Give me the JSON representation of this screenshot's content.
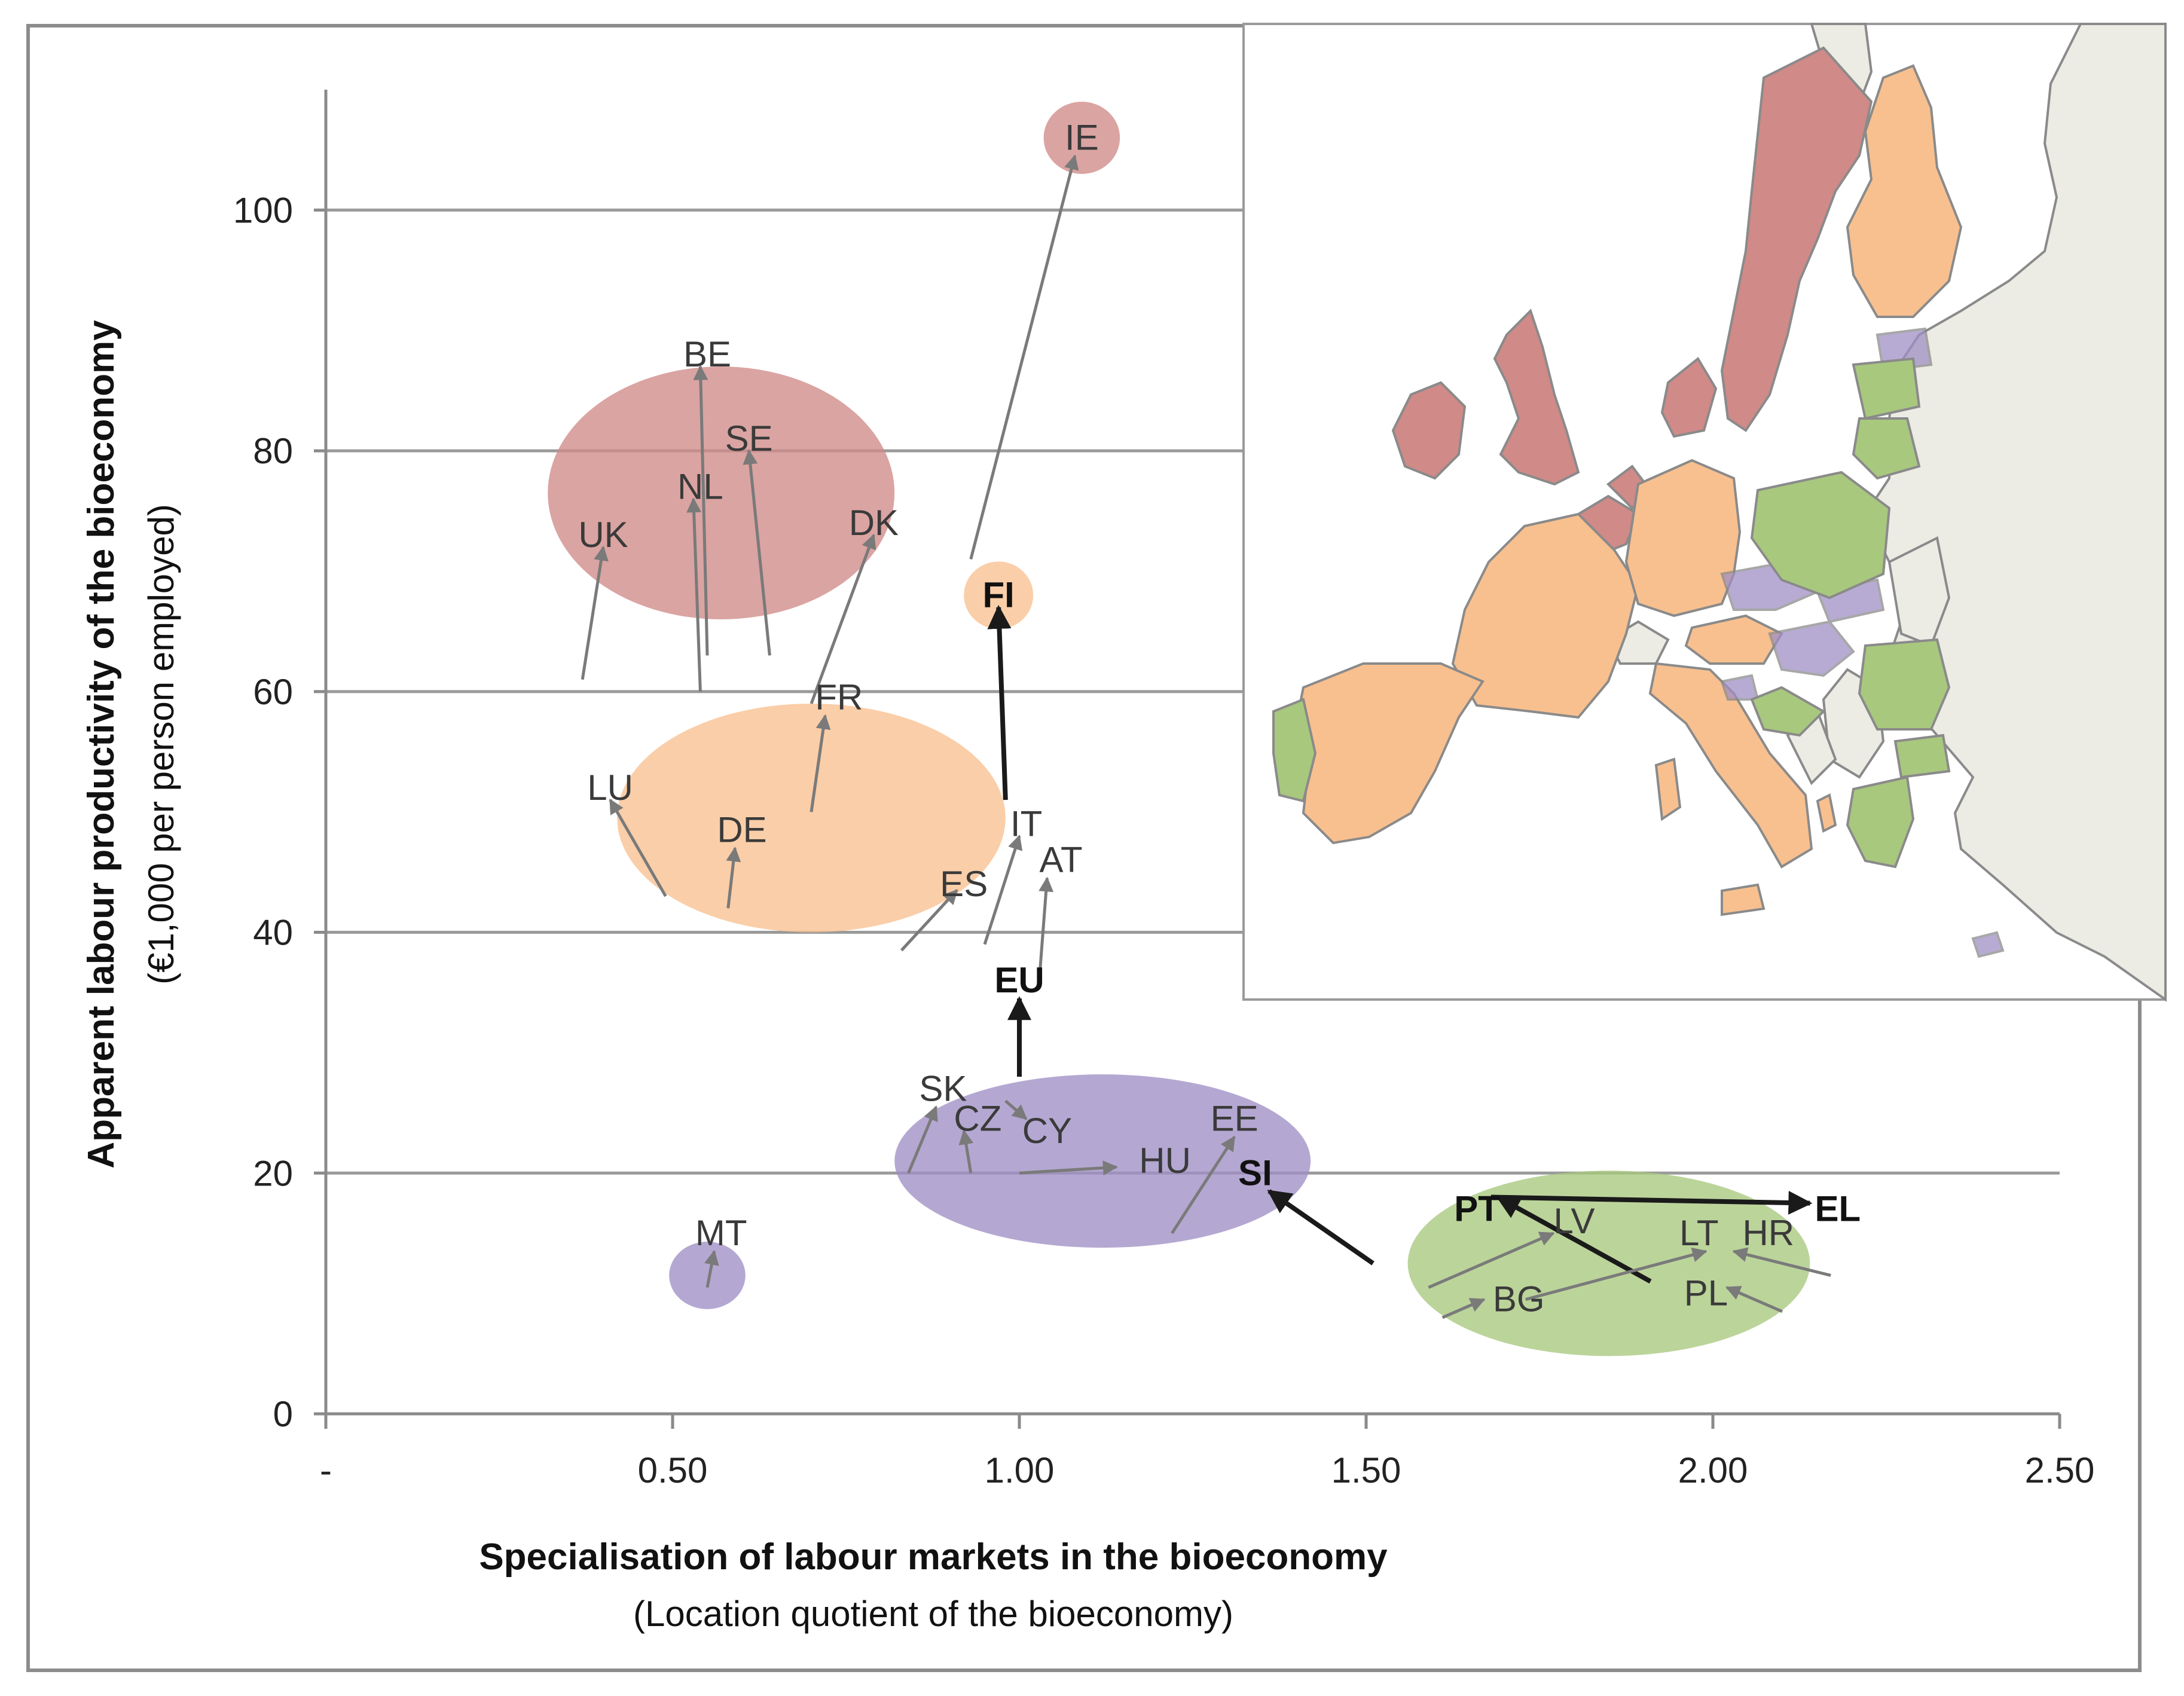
{
  "chart_data": {
    "type": "scatter",
    "xlabel": "Specialisation of labour markets in the bioeconomy",
    "xlabel_sub": "(Location quotient of the bioeconomy)",
    "ylabel": "Apparent labour productivity of the bioeconomy",
    "ylabel_sub": "(€1,000 per person employed)",
    "xlim": [
      0,
      2.5
    ],
    "ylim": [
      0,
      110
    ],
    "x_ticks": [
      {
        "value": 0,
        "label": "-"
      },
      {
        "value": 0.5,
        "label": "0.50"
      },
      {
        "value": 1.0,
        "label": "1.00"
      },
      {
        "value": 1.5,
        "label": "1.50"
      },
      {
        "value": 2.0,
        "label": "2.00"
      },
      {
        "value": 2.5,
        "label": "2.50"
      }
    ],
    "y_ticks": [
      {
        "value": 0,
        "label": "0"
      },
      {
        "value": 20,
        "label": "20"
      },
      {
        "value": 40,
        "label": "40"
      },
      {
        "value": 60,
        "label": "60"
      },
      {
        "value": 80,
        "label": "80"
      },
      {
        "value": 100,
        "label": "100"
      }
    ],
    "grid": "horizontal",
    "group_colors": {
      "red": "#d08a88",
      "orange": "#f8c08f",
      "purple": "#9f8fc5",
      "green": "#a8c87e"
    },
    "groups": [
      {
        "color": "red",
        "center": [
          0.57,
          76.5
        ],
        "radius": [
          0.25,
          10.5
        ]
      },
      {
        "color": "orange",
        "center": [
          0.7,
          49.5
        ],
        "radius": [
          0.28,
          9.5
        ]
      },
      {
        "color": "purple",
        "center": [
          1.12,
          21.0
        ],
        "radius": [
          0.3,
          7.2
        ]
      },
      {
        "color": "green",
        "center": [
          1.85,
          12.5
        ],
        "radius": [
          0.29,
          7.7
        ]
      },
      {
        "color": "red",
        "center": [
          1.09,
          106.0
        ],
        "radius": [
          0.055,
          3.0
        ]
      },
      {
        "color": "orange",
        "center": [
          0.97,
          68.0
        ],
        "radius": [
          0.05,
          2.8
        ]
      },
      {
        "color": "purple",
        "center": [
          0.55,
          11.5
        ],
        "radius": [
          0.055,
          2.8
        ]
      }
    ],
    "points": [
      {
        "label": "IE",
        "from": [
          0.93,
          71
        ],
        "to": [
          1.08,
          104.5
        ],
        "label_at": [
          1.09,
          106
        ],
        "bold": false
      },
      {
        "label": "BE",
        "from": [
          0.55,
          63
        ],
        "to": [
          0.54,
          87
        ],
        "label_at": [
          0.55,
          88
        ],
        "bold": false
      },
      {
        "label": "SE",
        "from": [
          0.64,
          63
        ],
        "to": [
          0.61,
          80
        ],
        "label_at": [
          0.61,
          81
        ],
        "bold": false
      },
      {
        "label": "NL",
        "from": [
          0.54,
          60
        ],
        "to": [
          0.53,
          76
        ],
        "label_at": [
          0.54,
          77
        ],
        "bold": false
      },
      {
        "label": "UK",
        "from": [
          0.37,
          61
        ],
        "to": [
          0.4,
          72
        ],
        "label_at": [
          0.4,
          73
        ],
        "bold": false
      },
      {
        "label": "DK",
        "from": [
          0.7,
          59
        ],
        "to": [
          0.79,
          73
        ],
        "label_at": [
          0.79,
          74
        ],
        "bold": false
      },
      {
        "label": "FI",
        "from": [
          0.98,
          51
        ],
        "to": [
          0.97,
          67
        ],
        "label_at": [
          0.97,
          68
        ],
        "bold": true
      },
      {
        "label": "FR",
        "from": [
          0.7,
          50
        ],
        "to": [
          0.72,
          58
        ],
        "label_at": [
          0.74,
          59.5
        ],
        "bold": false
      },
      {
        "label": "LU",
        "from": [
          0.49,
          43
        ],
        "to": [
          0.41,
          51
        ],
        "label_at": [
          0.41,
          52
        ],
        "bold": false
      },
      {
        "label": "DE",
        "from": [
          0.58,
          42
        ],
        "to": [
          0.59,
          47
        ],
        "label_at": [
          0.6,
          48.5
        ],
        "bold": false
      },
      {
        "label": "IT",
        "from": [
          0.95,
          39
        ],
        "to": [
          1.0,
          48
        ],
        "label_at": [
          1.01,
          49
        ],
        "bold": false
      },
      {
        "label": "AT",
        "from": [
          1.03,
          37
        ],
        "to": [
          1.04,
          44.5
        ],
        "label_at": [
          1.06,
          46
        ],
        "bold": false
      },
      {
        "label": "ES",
        "from": [
          0.83,
          38.5
        ],
        "to": [
          0.91,
          43.5
        ],
        "label_at": [
          0.92,
          44
        ],
        "bold": false
      },
      {
        "label": "EU",
        "from": [
          1.0,
          28
        ],
        "to": [
          1.0,
          34.5
        ],
        "label_at": [
          1.0,
          36
        ],
        "bold": true
      },
      {
        "label": "SK",
        "from": [
          0.84,
          20
        ],
        "to": [
          0.88,
          25.5
        ],
        "label_at": [
          0.89,
          27
        ],
        "bold": false
      },
      {
        "label": "CZ",
        "from": [
          0.93,
          20
        ],
        "to": [
          0.92,
          23.5
        ],
        "label_at": [
          0.94,
          24.5
        ],
        "bold": false
      },
      {
        "label": "CY",
        "from": [
          0.98,
          26
        ],
        "to": [
          1.01,
          24.5
        ],
        "label_at": [
          1.04,
          23.5
        ],
        "bold": false
      },
      {
        "label": "HU",
        "from": [
          1.0,
          20
        ],
        "to": [
          1.14,
          20.5
        ],
        "label_at": [
          1.21,
          21
        ],
        "bold": false
      },
      {
        "label": "EE",
        "from": [
          1.22,
          15
        ],
        "to": [
          1.31,
          23
        ],
        "label_at": [
          1.31,
          24.5
        ],
        "bold": false
      },
      {
        "label": "SI",
        "from": [
          1.51,
          12.5
        ],
        "to": [
          1.36,
          18.5
        ],
        "label_at": [
          1.34,
          20
        ],
        "bold": true
      },
      {
        "label": "MT",
        "from": [
          0.55,
          10.5
        ],
        "to": [
          0.56,
          13.5
        ],
        "label_at": [
          0.57,
          15
        ],
        "bold": false
      },
      {
        "label": "PT",
        "from": [
          1.91,
          11
        ],
        "to": [
          1.69,
          18
        ],
        "label_at": [
          1.66,
          17
        ],
        "bold": true
      },
      {
        "label": "EL",
        "from": [
          1.68,
          18
        ],
        "to": [
          2.14,
          17.5
        ],
        "label_at": [
          2.18,
          17
        ],
        "bold": true
      },
      {
        "label": "LV",
        "from": [
          1.59,
          10.5
        ],
        "to": [
          1.77,
          15
        ],
        "label_at": [
          1.8,
          16
        ],
        "bold": false
      },
      {
        "label": "BG",
        "from": [
          1.61,
          8
        ],
        "to": [
          1.67,
          9.5
        ],
        "label_at": [
          1.72,
          9.5
        ],
        "bold": false
      },
      {
        "label": "LT",
        "from": [
          1.73,
          9.5
        ],
        "to": [
          1.99,
          13.5
        ],
        "label_at": [
          1.98,
          15
        ],
        "bold": false
      },
      {
        "label": "HR",
        "from": [
          2.17,
          11.5
        ],
        "to": [
          2.03,
          13.5
        ],
        "label_at": [
          2.08,
          15
        ],
        "bold": false
      },
      {
        "label": "PL",
        "from": [
          2.1,
          8.5
        ],
        "to": [
          2.02,
          10.5
        ],
        "label_at": [
          1.99,
          10
        ],
        "bold": false
      }
    ]
  },
  "map": {
    "legend_colors_by_group": {
      "red": [
        "IE",
        "UK",
        "BE",
        "NL",
        "DK",
        "SE"
      ],
      "orange": [
        "FI",
        "FR",
        "LU",
        "DE",
        "IT",
        "AT",
        "ES"
      ],
      "purple": [
        "SK",
        "CZ",
        "CY",
        "HU",
        "EE",
        "SI",
        "MT"
      ],
      "green": [
        "PT",
        "EL",
        "LV",
        "BG",
        "LT",
        "HR",
        "PL",
        "RO"
      ]
    },
    "non_eu_color": "#ecebe4",
    "sea_color": "#ffffff",
    "border_color": "#8a8a8a"
  }
}
